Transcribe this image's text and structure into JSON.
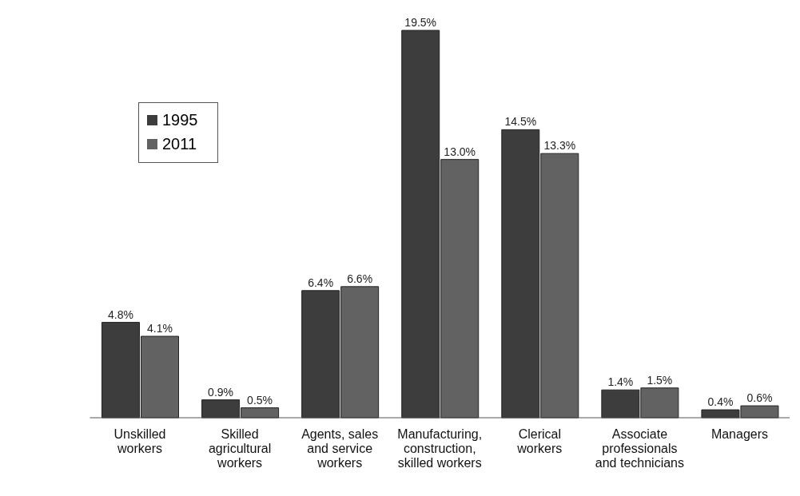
{
  "chart_data": {
    "type": "bar",
    "categories": [
      "Unskilled workers",
      "Skilled agricultural workers",
      "Agents, sales and service workers",
      "Manufacturing, construction, skilled workers",
      "Clerical workers",
      "Associate professionals and technicians",
      "Managers"
    ],
    "series": [
      {
        "name": "1995",
        "color": "#3d3d3d",
        "values": [
          4.8,
          0.9,
          6.4,
          19.5,
          14.5,
          1.4,
          0.4
        ],
        "value_labels": [
          "4.8%",
          "0.9%",
          "6.4%",
          "19.5%",
          "14.5%",
          "1.4%",
          "0.4%"
        ]
      },
      {
        "name": "2011",
        "color": "#626262",
        "values": [
          4.1,
          0.5,
          6.6,
          13.0,
          13.3,
          1.5,
          0.6
        ],
        "value_labels": [
          "4.1%",
          "0.5%",
          "6.6%",
          "13.0%",
          "13.3%",
          "1.5%",
          "0.6%"
        ]
      }
    ],
    "legend": "top left",
    "grid": false
  }
}
